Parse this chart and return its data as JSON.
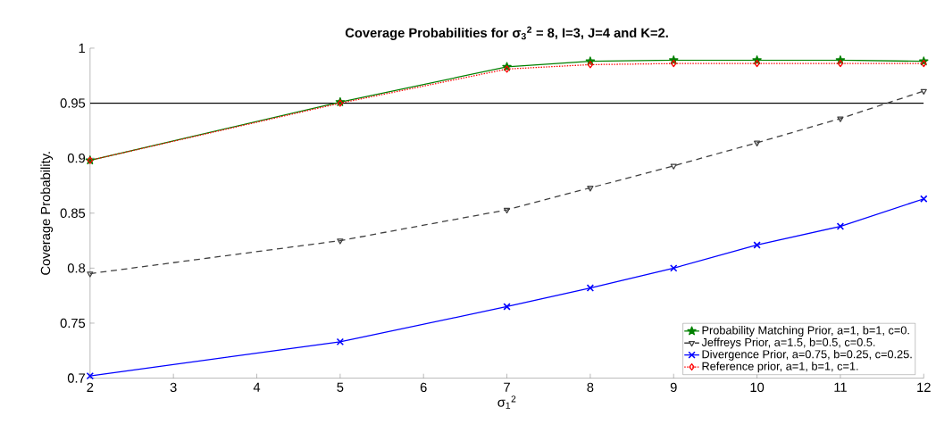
{
  "chart_data": {
    "type": "line",
    "title": "Coverage Probabilities for σ$_{3}$$^{2}$ = 8, I=3, J=4 and K=2.",
    "xlabel": "σ$_{1}$$^{2}$",
    "ylabel": "Coverage Probability.",
    "x": [
      2,
      5,
      7,
      8,
      9,
      10,
      11,
      12
    ],
    "series": [
      {
        "name": "Probability Matching Prior, a=1, b=1, c=0.",
        "color": "#008000",
        "marker": "star",
        "line_style": "solid",
        "values": [
          0.898,
          0.951,
          0.983,
          0.988,
          0.989,
          0.989,
          0.989,
          0.988
        ]
      },
      {
        "name": "Jeffreys Prior, a=1.5, b=0.5, c=0.5.",
        "color": "#404040",
        "marker": "triangle",
        "line_style": "dashed",
        "values": [
          0.795,
          0.825,
          0.853,
          0.873,
          0.893,
          0.914,
          0.936,
          0.961
        ]
      },
      {
        "name": "Divergence Prior, a=0.75, b=0.25, c=0.25.",
        "color": "#0000ff",
        "marker": "cross",
        "line_style": "solid",
        "values": [
          0.702,
          0.733,
          0.765,
          0.782,
          0.8,
          0.821,
          0.838,
          0.863
        ]
      },
      {
        "name": "Reference prior, a=1, b=1, c=1.",
        "color": "#ff0000",
        "marker": "diamond",
        "line_style": "dotted",
        "values": [
          0.898,
          0.95,
          0.981,
          0.985,
          0.986,
          0.986,
          0.986,
          0.986
        ]
      }
    ],
    "xlim": [
      2,
      12
    ],
    "xticks": [
      2,
      3,
      4,
      5,
      6,
      7,
      8,
      9,
      10,
      11,
      12
    ],
    "ylim": [
      0.7,
      1
    ],
    "yticks": [
      0.7,
      0.75,
      0.8,
      0.85,
      0.9,
      0.95,
      1
    ],
    "ref_lines": [
      {
        "axis": "y",
        "value": 0.95,
        "color": "#000000"
      }
    ],
    "grid": false,
    "legend": "bottom right"
  }
}
